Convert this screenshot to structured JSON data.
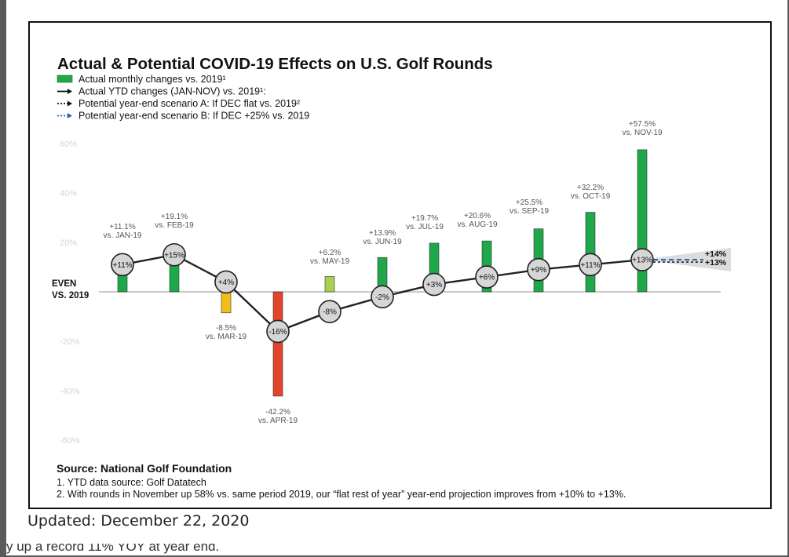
{
  "caption": "Updated: December 22, 2020",
  "below_text": "y up a record 11% YOY at year end.",
  "colors": {
    "green": "#1fa84a",
    "yellow": "#f2be1a",
    "red": "#e2452b",
    "light_green": "#a9cf53",
    "line": "#222222",
    "scenario_b": "#1f6fb5",
    "marker": "#d6d6d6"
  },
  "chart_data": {
    "type": "bar",
    "title": "Actual & Potential COVID-19 Effects on U.S. Golf Rounds",
    "legend": [
      {
        "label": "Actual monthly changes vs. 2019¹",
        "symbol": "green-bar"
      },
      {
        "label": "Actual YTD changes (JAN-NOV) vs. 2019¹:",
        "symbol": "solid-arrow"
      },
      {
        "label": "Potential year-end scenario A: If DEC flat vs. 2019²",
        "symbol": "dotted-arrow"
      },
      {
        "label": "Potential year-end scenario B: If DEC +25% vs. 2019",
        "symbol": "blue-dotted-arrow"
      }
    ],
    "ylim": [
      -60,
      60
    ],
    "yticks": [
      {
        "value": 60,
        "label": "60%"
      },
      {
        "value": 40,
        "label": "40%"
      },
      {
        "value": 20,
        "label": "20%"
      },
      {
        "value": -20,
        "label": "-20%"
      },
      {
        "value": -40,
        "label": "-40%"
      },
      {
        "value": -60,
        "label": "-60%"
      }
    ],
    "baseline_label": [
      "EVEN",
      "VS. 2019"
    ],
    "monthly": [
      {
        "month": "JAN",
        "value": 11.1,
        "label1": "+11.1%",
        "label2": "vs. JAN-19",
        "color": "green"
      },
      {
        "month": "FEB",
        "value": 19.1,
        "label1": "+19.1%",
        "label2": "vs. FEB-19",
        "color": "green"
      },
      {
        "month": "MAR",
        "value": -8.5,
        "label1": "-8.5%",
        "label2": "vs. MAR-19",
        "color": "yellow"
      },
      {
        "month": "APR",
        "value": -42.2,
        "label1": "-42.2%",
        "label2": "vs. APR-19",
        "color": "red"
      },
      {
        "month": "MAY",
        "value": 6.2,
        "label1": "+6.2%",
        "label2": "vs. MAY-19",
        "color": "light_green"
      },
      {
        "month": "JUN",
        "value": 13.9,
        "label1": "+13.9%",
        "label2": "vs. JUN-19",
        "color": "green"
      },
      {
        "month": "JUL",
        "value": 19.7,
        "label1": "+19.7%",
        "label2": "vs. JUL-19",
        "color": "green"
      },
      {
        "month": "AUG",
        "value": 20.6,
        "label1": "+20.6%",
        "label2": "vs. AUG-19",
        "color": "green"
      },
      {
        "month": "SEP",
        "value": 25.5,
        "label1": "+25.5%",
        "label2": "vs. SEP-19",
        "color": "green"
      },
      {
        "month": "OCT",
        "value": 32.2,
        "label1": "+32.2%",
        "label2": "vs. OCT-19",
        "color": "green"
      },
      {
        "month": "NOV",
        "value": 57.5,
        "label1": "+57.5%",
        "label2": "vs. NOV-19",
        "color": "green"
      }
    ],
    "ytd": [
      {
        "month": "JAN",
        "value": 11,
        "label": "+11%"
      },
      {
        "month": "FEB",
        "value": 15,
        "label": "+15%"
      },
      {
        "month": "MAR",
        "value": 4,
        "label": "+4%"
      },
      {
        "month": "APR",
        "value": -16,
        "label": "-16%"
      },
      {
        "month": "MAY",
        "value": -8,
        "label": "-8%"
      },
      {
        "month": "JUN",
        "value": -2,
        "label": "-2%"
      },
      {
        "month": "JUL",
        "value": 3,
        "label": "+3%"
      },
      {
        "month": "AUG",
        "value": 6,
        "label": "+6%"
      },
      {
        "month": "SEP",
        "value": 9,
        "label": "+9%"
      },
      {
        "month": "OCT",
        "value": 11,
        "label": "+11%"
      },
      {
        "month": "NOV",
        "value": 13,
        "label": "+13%"
      }
    ],
    "scenarios": [
      {
        "name": "scenario A",
        "value": 13,
        "label": "+13%"
      },
      {
        "name": "scenario B",
        "value": 14,
        "label": "+14%"
      }
    ],
    "source": "Source: National Golf Foundation",
    "footnotes": [
      "1. YTD data source: Golf Datatech",
      "2. With rounds in November up 58% vs. same period 2019, our “flat rest of year” year-end projection improves from +10% to +13%."
    ]
  }
}
